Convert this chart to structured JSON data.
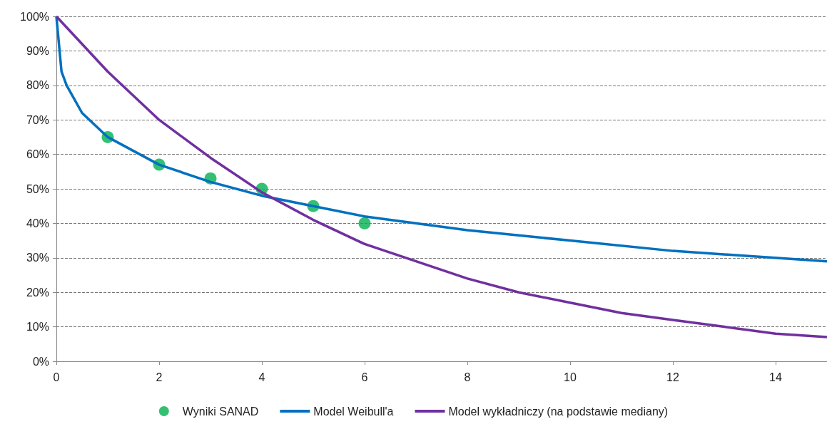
{
  "chart_data": {
    "type": "line",
    "xlim": [
      0,
      15
    ],
    "xticks": [
      0,
      2,
      4,
      6,
      8,
      10,
      12,
      14
    ],
    "ylim": [
      0,
      100
    ],
    "yticks": [
      {
        "value": 0,
        "label": "0%"
      },
      {
        "value": 10,
        "label": "10%"
      },
      {
        "value": 20,
        "label": "20%"
      },
      {
        "value": 30,
        "label": "30%"
      },
      {
        "value": 40,
        "label": "40%"
      },
      {
        "value": 50,
        "label": "50%"
      },
      {
        "value": 60,
        "label": "60%"
      },
      {
        "value": 70,
        "label": "70%"
      },
      {
        "value": 80,
        "label": "80%"
      },
      {
        "value": 90,
        "label": "90%"
      },
      {
        "value": 100,
        "label": "100%"
      }
    ],
    "grid": "y",
    "legend": "bottom",
    "series": [
      {
        "name": "Wyniki SANAD",
        "type": "scatter",
        "marker": "circle",
        "color": "#00b050",
        "x": [
          1,
          2,
          3,
          4,
          5,
          6
        ],
        "values": [
          65,
          57,
          53,
          50,
          45,
          40
        ]
      },
      {
        "name": "Model Weibull'a",
        "type": "line",
        "color": "#0070c0",
        "x": [
          0,
          0.1,
          0.2,
          0.5,
          1,
          2,
          3,
          4,
          5,
          6,
          8,
          10,
          12,
          15
        ],
        "values": [
          100,
          84,
          80,
          72,
          65,
          57,
          52,
          48,
          45,
          42,
          38,
          35,
          32,
          29
        ]
      },
      {
        "name": "Model wykładniczy (na podstawie mediany)",
        "type": "line",
        "color": "#7030a0",
        "x": [
          0,
          1,
          2,
          3,
          4,
          5,
          6,
          7,
          8,
          9,
          10,
          11,
          12,
          13,
          14,
          15
        ],
        "values": [
          100,
          84,
          70,
          59,
          49,
          41,
          34,
          29,
          24,
          20,
          17,
          14,
          12,
          10,
          8,
          7
        ]
      }
    ]
  }
}
